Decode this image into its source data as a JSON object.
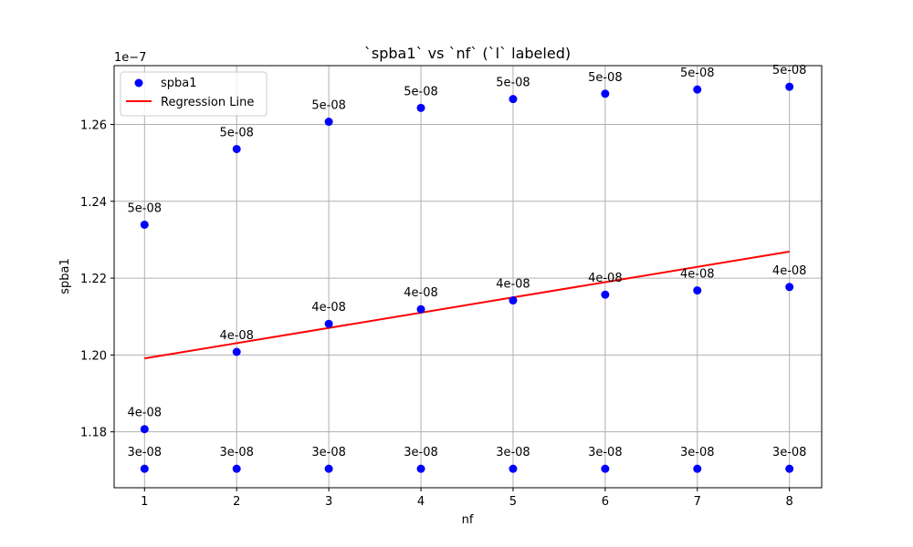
{
  "chart_data": {
    "type": "scatter",
    "title": "`spba1` vs `nf` (`l` labeled)",
    "xlabel": "nf",
    "ylabel": "spba1",
    "y_offset_text": "1e−7",
    "xlim": [
      0.67,
      8.35
    ],
    "ylim": [
      1.16545e-07,
      1.2753e-07
    ],
    "xticks": [
      1,
      2,
      3,
      4,
      5,
      6,
      7,
      8
    ],
    "xtick_labels": [
      "1",
      "2",
      "3",
      "4",
      "5",
      "6",
      "7",
      "8"
    ],
    "yticks": [
      1.18e-07,
      1.2e-07,
      1.22e-07,
      1.24e-07,
      1.26e-07
    ],
    "ytick_labels": [
      "1.18",
      "1.20",
      "1.22",
      "1.24",
      "1.26"
    ],
    "grid": true,
    "legend_position": "top-left",
    "colors": {
      "points": "#0000ff",
      "regression": "#ff0000",
      "grid": "#b0b0b0"
    },
    "series": [
      {
        "name": "spba1",
        "kind": "scatter",
        "points": [
          {
            "x": 1,
            "y": 1.1704e-07,
            "label": "3e-08"
          },
          {
            "x": 1,
            "y": 1.1807e-07,
            "label": "4e-08"
          },
          {
            "x": 1,
            "y": 1.2339e-07,
            "label": "5e-08"
          },
          {
            "x": 2,
            "y": 1.1704e-07,
            "label": "3e-08"
          },
          {
            "x": 2,
            "y": 1.2008e-07,
            "label": "4e-08"
          },
          {
            "x": 2,
            "y": 1.2536e-07,
            "label": "5e-08"
          },
          {
            "x": 3,
            "y": 1.1704e-07,
            "label": "3e-08"
          },
          {
            "x": 3,
            "y": 1.2081e-07,
            "label": "4e-08"
          },
          {
            "x": 3,
            "y": 1.2607e-07,
            "label": "5e-08"
          },
          {
            "x": 4,
            "y": 1.1704e-07,
            "label": "3e-08"
          },
          {
            "x": 4,
            "y": 1.2119e-07,
            "label": "4e-08"
          },
          {
            "x": 4,
            "y": 1.2643e-07,
            "label": "5e-08"
          },
          {
            "x": 5,
            "y": 1.1704e-07,
            "label": "3e-08"
          },
          {
            "x": 5,
            "y": 1.2142e-07,
            "label": "4e-08"
          },
          {
            "x": 5,
            "y": 1.2666e-07,
            "label": "5e-08"
          },
          {
            "x": 6,
            "y": 1.1704e-07,
            "label": "3e-08"
          },
          {
            "x": 6,
            "y": 1.2157e-07,
            "label": "4e-08"
          },
          {
            "x": 6,
            "y": 1.268e-07,
            "label": "5e-08"
          },
          {
            "x": 7,
            "y": 1.1704e-07,
            "label": "3e-08"
          },
          {
            "x": 7,
            "y": 1.2168e-07,
            "label": "4e-08"
          },
          {
            "x": 7,
            "y": 1.2691e-07,
            "label": "5e-08"
          },
          {
            "x": 8,
            "y": 1.1704e-07,
            "label": "3e-08"
          },
          {
            "x": 8,
            "y": 1.2177e-07,
            "label": "4e-08"
          },
          {
            "x": 8,
            "y": 1.2698e-07,
            "label": "5e-08"
          }
        ]
      },
      {
        "name": "Regression Line",
        "kind": "line",
        "x": [
          1,
          8
        ],
        "y": [
          1.1991e-07,
          1.2269e-07
        ]
      }
    ]
  }
}
